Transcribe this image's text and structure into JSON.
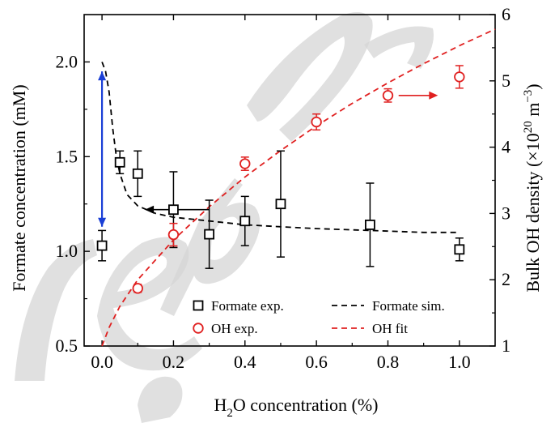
{
  "chart_data": {
    "type": "scatter",
    "xlabel_main": "H",
    "xlabel_sub": "2",
    "xlabel_rest": "O concentration (%)",
    "ylabel_left": "Formate concentration (mM)",
    "ylabel_right_main": "Bulk OH density (×10",
    "ylabel_right_exp1": "20",
    "ylabel_right_mid": " m",
    "ylabel_right_exp2": "−3",
    "ylabel_right_end": ")",
    "xlim": [
      -0.05,
      1.1
    ],
    "ylim_left": [
      0.5,
      2.25
    ],
    "ylim_right": [
      1,
      6
    ],
    "x_ticks": [
      0.0,
      0.2,
      0.4,
      0.6,
      0.8,
      1.0
    ],
    "x_tick_labels": [
      "0.0",
      "0.2",
      "0.4",
      "0.6",
      "0.8",
      "1.0"
    ],
    "y_left_ticks": [
      0.5,
      1.0,
      1.5,
      2.0
    ],
    "y_left_tick_labels": [
      "0.5",
      "1.0",
      "1.5",
      "2.0"
    ],
    "y_right_ticks": [
      1,
      2,
      3,
      4,
      5,
      6
    ],
    "y_right_tick_labels": [
      "1",
      "2",
      "3",
      "4",
      "5",
      "6"
    ],
    "legend_position": "bottom-right",
    "series": [
      {
        "name": "Formate exp.",
        "axis": "left",
        "marker": "square",
        "color": "#000000",
        "x": [
          0.0,
          0.05,
          0.1,
          0.2,
          0.3,
          0.4,
          0.5,
          0.75,
          1.0
        ],
        "y": [
          1.03,
          1.47,
          1.41,
          1.22,
          1.09,
          1.16,
          1.25,
          1.14,
          1.01
        ],
        "err": [
          0.08,
          0.06,
          0.12,
          0.2,
          0.18,
          0.13,
          0.28,
          0.22,
          0.06
        ]
      },
      {
        "name": "OH exp.",
        "axis": "right",
        "marker": "circle",
        "color": "#e02020",
        "x": [
          0.1,
          0.2,
          0.4,
          0.6,
          0.8,
          1.0
        ],
        "y": [
          1.87,
          2.68,
          3.75,
          4.38,
          4.78,
          5.06
        ],
        "err": [
          0.06,
          0.17,
          0.1,
          0.12,
          0.1,
          0.17
        ]
      },
      {
        "name": "Formate sim.",
        "axis": "left",
        "line": "dashed",
        "color": "#000000",
        "x": [
          0.0,
          0.01,
          0.02,
          0.03,
          0.04,
          0.05,
          0.07,
          0.1,
          0.15,
          0.2,
          0.3,
          0.4,
          0.5,
          0.6,
          0.75,
          0.9,
          1.0
        ],
        "y": [
          2.0,
          1.95,
          1.84,
          1.65,
          1.5,
          1.41,
          1.3,
          1.24,
          1.2,
          1.18,
          1.16,
          1.14,
          1.13,
          1.12,
          1.11,
          1.1,
          1.1
        ]
      },
      {
        "name": "OH fit",
        "axis": "right",
        "line": "dashed",
        "color": "#e02020",
        "x": [
          0.0,
          0.02,
          0.05,
          0.1,
          0.15,
          0.2,
          0.3,
          0.4,
          0.5,
          0.6,
          0.7,
          0.8,
          0.9,
          1.0,
          1.1
        ],
        "y": [
          1.0,
          1.28,
          1.6,
          2.0,
          2.3,
          2.6,
          3.1,
          3.55,
          3.95,
          4.32,
          4.66,
          4.97,
          5.26,
          5.53,
          5.78
        ]
      }
    ],
    "annotations": {
      "blue_arrow": {
        "color": "#1a3fd6",
        "x": 0.0,
        "y_from": 1.13,
        "y_to": 1.95
      },
      "black_arrow": {
        "color": "#000000",
        "x_from": 0.3,
        "x_to": 0.12,
        "y": 1.22
      },
      "red_arrow": {
        "color": "#e02020",
        "x_from": 0.83,
        "x_to": 0.94,
        "y_right": 4.78
      }
    },
    "watermark": {
      "color": "#d0d0d0"
    }
  }
}
